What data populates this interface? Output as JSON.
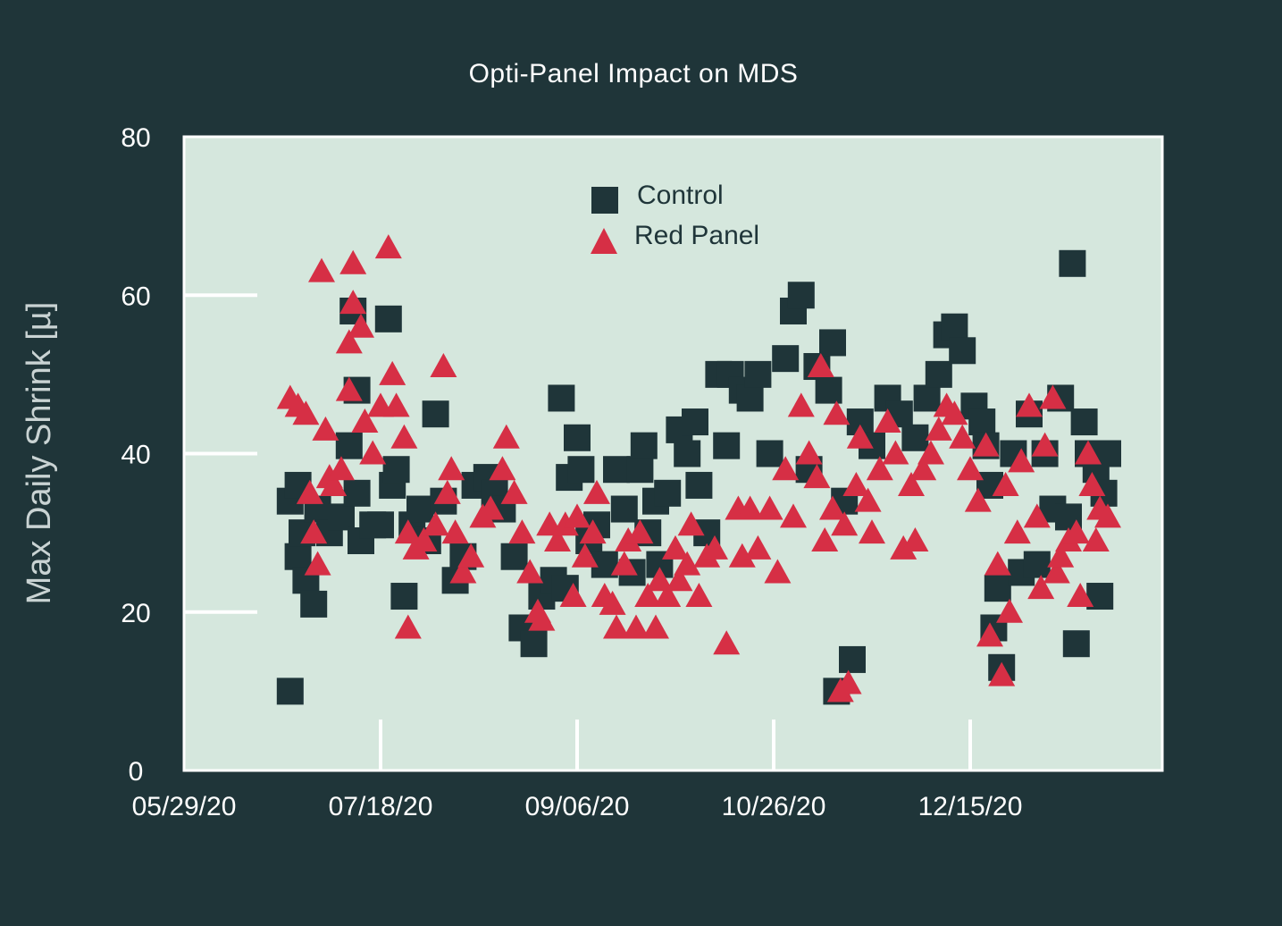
{
  "chart_data": {
    "type": "scatter",
    "title": "Opti-Panel Impact on MDS",
    "xlabel": "",
    "ylabel": "Max Daily Shrink [µ]",
    "xlim": [
      "2020-05-29",
      "2021-02-06"
    ],
    "ylim": [
      0,
      80
    ],
    "x_ticks": [
      "05/29/20",
      "07/18/20",
      "09/06/20",
      "10/26/20",
      "12/15/20"
    ],
    "y_ticks": [
      0,
      20,
      40,
      60,
      80
    ],
    "legend_position": "top-center",
    "colors": {
      "background": "#1f3539",
      "plot_bg": "#d5e7dd",
      "control": "#1f3539",
      "red_panel": "#d62f45"
    },
    "series": [
      {
        "name": "Control",
        "marker": "square",
        "color": "#1f3539",
        "points": [
          [
            "2020-06-25",
            10
          ],
          [
            "2020-06-25",
            34
          ],
          [
            "2020-06-27",
            36
          ],
          [
            "2020-06-27",
            27
          ],
          [
            "2020-06-28",
            30
          ],
          [
            "2020-06-29",
            24
          ],
          [
            "2020-07-01",
            21
          ],
          [
            "2020-07-02",
            33
          ],
          [
            "2020-07-05",
            30
          ],
          [
            "2020-07-08",
            32
          ],
          [
            "2020-07-10",
            41
          ],
          [
            "2020-07-11",
            58
          ],
          [
            "2020-07-12",
            48
          ],
          [
            "2020-07-12",
            35
          ],
          [
            "2020-07-13",
            29
          ],
          [
            "2020-07-16",
            31
          ],
          [
            "2020-07-18",
            31
          ],
          [
            "2020-07-20",
            57
          ],
          [
            "2020-07-21",
            36
          ],
          [
            "2020-07-22",
            38
          ],
          [
            "2020-07-24",
            22
          ],
          [
            "2020-07-26",
            31
          ],
          [
            "2020-07-28",
            33
          ],
          [
            "2020-07-30",
            29
          ],
          [
            "2020-08-01",
            45
          ],
          [
            "2020-08-03",
            34
          ],
          [
            "2020-08-06",
            24
          ],
          [
            "2020-08-08",
            27
          ],
          [
            "2020-08-11",
            36
          ],
          [
            "2020-08-14",
            37
          ],
          [
            "2020-08-16",
            35
          ],
          [
            "2020-08-18",
            33
          ],
          [
            "2020-08-21",
            27
          ],
          [
            "2020-08-23",
            18
          ],
          [
            "2020-08-26",
            16
          ],
          [
            "2020-08-28",
            22
          ],
          [
            "2020-08-31",
            24
          ],
          [
            "2020-09-02",
            47
          ],
          [
            "2020-09-03",
            23
          ],
          [
            "2020-09-04",
            37
          ],
          [
            "2020-09-06",
            42
          ],
          [
            "2020-09-07",
            38
          ],
          [
            "2020-09-09",
            29
          ],
          [
            "2020-09-11",
            31
          ],
          [
            "2020-09-13",
            26
          ],
          [
            "2020-09-16",
            38
          ],
          [
            "2020-09-18",
            33
          ],
          [
            "2020-09-20",
            25
          ],
          [
            "2020-09-22",
            38
          ],
          [
            "2020-09-23",
            41
          ],
          [
            "2020-09-24",
            30
          ],
          [
            "2020-09-26",
            34
          ],
          [
            "2020-09-27",
            26
          ],
          [
            "2020-09-29",
            35
          ],
          [
            "2020-10-02",
            43
          ],
          [
            "2020-10-04",
            40
          ],
          [
            "2020-10-06",
            44
          ],
          [
            "2020-10-07",
            36
          ],
          [
            "2020-10-09",
            30
          ],
          [
            "2020-10-12",
            50
          ],
          [
            "2020-10-14",
            41
          ],
          [
            "2020-10-15",
            50
          ],
          [
            "2020-10-18",
            48
          ],
          [
            "2020-10-20",
            47
          ],
          [
            "2020-10-22",
            50
          ],
          [
            "2020-10-25",
            40
          ],
          [
            "2020-10-29",
            52
          ],
          [
            "2020-10-31",
            58
          ],
          [
            "2020-11-02",
            60
          ],
          [
            "2020-11-04",
            38
          ],
          [
            "2020-11-06",
            51
          ],
          [
            "2020-11-09",
            48
          ],
          [
            "2020-11-10",
            54
          ],
          [
            "2020-11-11",
            10
          ],
          [
            "2020-11-13",
            34
          ],
          [
            "2020-11-15",
            14
          ],
          [
            "2020-11-17",
            44
          ],
          [
            "2020-11-20",
            41
          ],
          [
            "2020-11-24",
            47
          ],
          [
            "2020-11-27",
            45
          ],
          [
            "2020-12-01",
            42
          ],
          [
            "2020-12-04",
            47
          ],
          [
            "2020-12-07",
            50
          ],
          [
            "2020-12-09",
            55
          ],
          [
            "2020-12-11",
            56
          ],
          [
            "2020-12-13",
            53
          ],
          [
            "2020-12-16",
            46
          ],
          [
            "2020-12-18",
            44
          ],
          [
            "2020-12-19",
            41
          ],
          [
            "2020-12-20",
            36
          ],
          [
            "2020-12-21",
            18
          ],
          [
            "2020-12-22",
            23
          ],
          [
            "2020-12-23",
            13
          ],
          [
            "2020-12-26",
            40
          ],
          [
            "2020-12-28",
            25
          ],
          [
            "2020-12-30",
            45
          ],
          [
            "2021-01-01",
            26
          ],
          [
            "2021-01-03",
            40
          ],
          [
            "2021-01-05",
            33
          ],
          [
            "2021-01-07",
            47
          ],
          [
            "2021-01-09",
            32
          ],
          [
            "2021-01-10",
            64
          ],
          [
            "2021-01-11",
            16
          ],
          [
            "2021-01-13",
            44
          ],
          [
            "2021-01-14",
            40
          ],
          [
            "2021-01-16",
            38
          ],
          [
            "2021-01-17",
            22
          ],
          [
            "2021-01-18",
            35
          ],
          [
            "2021-01-19",
            40
          ]
        ]
      },
      {
        "name": "Red Panel",
        "marker": "triangle",
        "color": "#d62f45",
        "points": [
          [
            "2020-06-25",
            47
          ],
          [
            "2020-06-27",
            46
          ],
          [
            "2020-06-29",
            45
          ],
          [
            "2020-06-30",
            35
          ],
          [
            "2020-07-01",
            30
          ],
          [
            "2020-07-02",
            26
          ],
          [
            "2020-07-03",
            63
          ],
          [
            "2020-07-04",
            43
          ],
          [
            "2020-07-05",
            37
          ],
          [
            "2020-07-06",
            36
          ],
          [
            "2020-07-08",
            38
          ],
          [
            "2020-07-10",
            48
          ],
          [
            "2020-07-10",
            54
          ],
          [
            "2020-07-11",
            59
          ],
          [
            "2020-07-11",
            64
          ],
          [
            "2020-07-13",
            56
          ],
          [
            "2020-07-14",
            44
          ],
          [
            "2020-07-16",
            40
          ],
          [
            "2020-07-18",
            46
          ],
          [
            "2020-07-20",
            66
          ],
          [
            "2020-07-21",
            50
          ],
          [
            "2020-07-22",
            46
          ],
          [
            "2020-07-24",
            42
          ],
          [
            "2020-07-25",
            30
          ],
          [
            "2020-07-25",
            18
          ],
          [
            "2020-07-27",
            28
          ],
          [
            "2020-07-29",
            29
          ],
          [
            "2020-08-01",
            31
          ],
          [
            "2020-08-03",
            51
          ],
          [
            "2020-08-04",
            35
          ],
          [
            "2020-08-05",
            38
          ],
          [
            "2020-08-06",
            30
          ],
          [
            "2020-08-08",
            25
          ],
          [
            "2020-08-10",
            27
          ],
          [
            "2020-08-13",
            32
          ],
          [
            "2020-08-15",
            33
          ],
          [
            "2020-08-18",
            38
          ],
          [
            "2020-08-19",
            42
          ],
          [
            "2020-08-21",
            35
          ],
          [
            "2020-08-23",
            30
          ],
          [
            "2020-08-25",
            25
          ],
          [
            "2020-08-27",
            20
          ],
          [
            "2020-08-28",
            19
          ],
          [
            "2020-08-30",
            31
          ],
          [
            "2020-09-01",
            29
          ],
          [
            "2020-09-03",
            31
          ],
          [
            "2020-09-05",
            22
          ],
          [
            "2020-09-06",
            32
          ],
          [
            "2020-09-08",
            27
          ],
          [
            "2020-09-10",
            30
          ],
          [
            "2020-09-11",
            35
          ],
          [
            "2020-09-13",
            22
          ],
          [
            "2020-09-15",
            21
          ],
          [
            "2020-09-16",
            18
          ],
          [
            "2020-09-18",
            26
          ],
          [
            "2020-09-19",
            29
          ],
          [
            "2020-09-21",
            18
          ],
          [
            "2020-09-22",
            30
          ],
          [
            "2020-09-24",
            22
          ],
          [
            "2020-09-26",
            18
          ],
          [
            "2020-09-27",
            24
          ],
          [
            "2020-09-29",
            22
          ],
          [
            "2020-10-01",
            28
          ],
          [
            "2020-10-02",
            24
          ],
          [
            "2020-10-04",
            26
          ],
          [
            "2020-10-05",
            31
          ],
          [
            "2020-10-07",
            22
          ],
          [
            "2020-10-09",
            27
          ],
          [
            "2020-10-11",
            28
          ],
          [
            "2020-10-14",
            16
          ],
          [
            "2020-10-17",
            33
          ],
          [
            "2020-10-18",
            27
          ],
          [
            "2020-10-20",
            33
          ],
          [
            "2020-10-22",
            28
          ],
          [
            "2020-10-25",
            33
          ],
          [
            "2020-10-27",
            25
          ],
          [
            "2020-10-29",
            38
          ],
          [
            "2020-10-31",
            32
          ],
          [
            "2020-11-02",
            46
          ],
          [
            "2020-11-04",
            40
          ],
          [
            "2020-11-06",
            37
          ],
          [
            "2020-11-07",
            51
          ],
          [
            "2020-11-08",
            29
          ],
          [
            "2020-11-10",
            33
          ],
          [
            "2020-11-11",
            45
          ],
          [
            "2020-11-12",
            10
          ],
          [
            "2020-11-13",
            31
          ],
          [
            "2020-11-14",
            11
          ],
          [
            "2020-11-16",
            36
          ],
          [
            "2020-11-17",
            42
          ],
          [
            "2020-11-19",
            34
          ],
          [
            "2020-11-20",
            30
          ],
          [
            "2020-11-22",
            38
          ],
          [
            "2020-11-24",
            44
          ],
          [
            "2020-11-26",
            40
          ],
          [
            "2020-11-28",
            28
          ],
          [
            "2020-11-30",
            36
          ],
          [
            "2020-12-01",
            29
          ],
          [
            "2020-12-03",
            38
          ],
          [
            "2020-12-05",
            40
          ],
          [
            "2020-12-07",
            43
          ],
          [
            "2020-12-09",
            46
          ],
          [
            "2020-12-11",
            45
          ],
          [
            "2020-12-13",
            42
          ],
          [
            "2020-12-15",
            38
          ],
          [
            "2020-12-17",
            34
          ],
          [
            "2020-12-19",
            41
          ],
          [
            "2020-12-20",
            17
          ],
          [
            "2020-12-22",
            26
          ],
          [
            "2020-12-23",
            12
          ],
          [
            "2020-12-24",
            36
          ],
          [
            "2020-12-25",
            20
          ],
          [
            "2020-12-27",
            30
          ],
          [
            "2020-12-28",
            39
          ],
          [
            "2020-12-30",
            46
          ],
          [
            "2021-01-01",
            32
          ],
          [
            "2021-01-02",
            23
          ],
          [
            "2021-01-03",
            41
          ],
          [
            "2021-01-05",
            47
          ],
          [
            "2021-01-06",
            25
          ],
          [
            "2021-01-07",
            27
          ],
          [
            "2021-01-09",
            29
          ],
          [
            "2021-01-11",
            30
          ],
          [
            "2021-01-12",
            22
          ],
          [
            "2021-01-14",
            40
          ],
          [
            "2021-01-15",
            36
          ],
          [
            "2021-01-16",
            29
          ],
          [
            "2021-01-17",
            33
          ],
          [
            "2021-01-19",
            32
          ]
        ]
      }
    ]
  }
}
